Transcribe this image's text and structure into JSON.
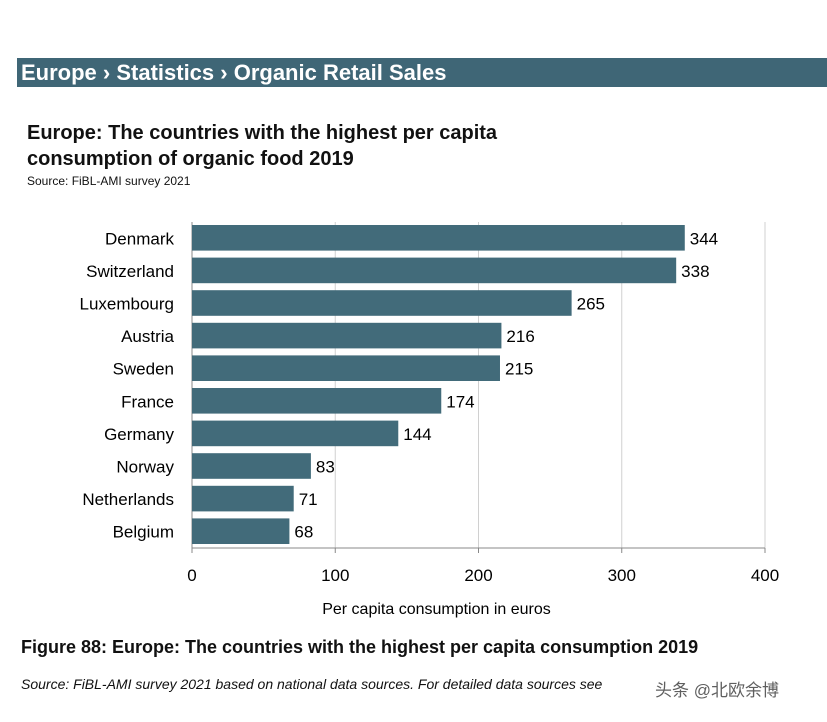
{
  "header": {
    "breadcrumb": "Europe ›  Statistics › Organic Retail Sales"
  },
  "chart_data": {
    "type": "bar",
    "orientation": "horizontal",
    "title": "Europe: The countries with the highest per capita consumption of organic food 2019",
    "subtitle": "Source: FiBL-AMI survey 2021",
    "categories": [
      "Denmark",
      "Switzerland",
      "Luxembourg",
      "Austria",
      "Sweden",
      "France",
      "Germany",
      "Norway",
      "Netherlands",
      "Belgium"
    ],
    "values": [
      344,
      338,
      265,
      216,
      215,
      174,
      144,
      83,
      71,
      68
    ],
    "xlabel": "Per capita consumption in euros",
    "ylabel": "",
    "xlim": [
      0,
      400
    ],
    "xticks": [
      0,
      100,
      200,
      300,
      400
    ],
    "grid": true,
    "bar_color": "#426b7a",
    "data_labels": true
  },
  "footer": {
    "caption": "Figure 88: Europe: The countries with the highest per capita consumption 2019",
    "note": "Source: FiBL-AMI survey 2021 based on national data sources. For detailed data sources see",
    "watermark": "头条 @北欧余博"
  }
}
